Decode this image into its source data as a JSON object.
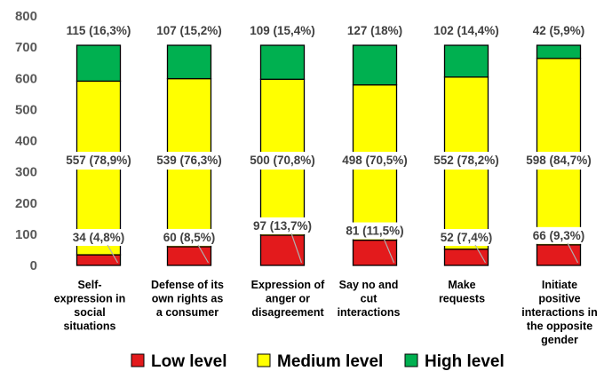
{
  "chart_data": {
    "type": "bar",
    "stacked": true,
    "categories": [
      [
        "Self-",
        "expression in",
        "social",
        "situations"
      ],
      [
        "Defense of its",
        "own rights as",
        "a consumer"
      ],
      [
        "Expression of",
        "anger or",
        "disagreement"
      ],
      [
        "Say no and",
        "cut",
        "interactions"
      ],
      [
        "Make",
        "requests"
      ],
      [
        "Initiate",
        "positive",
        "interactions in",
        "the opposite",
        "gender"
      ]
    ],
    "series": [
      {
        "name": "Low level",
        "color": "#e31a1c",
        "values": [
          34,
          60,
          97,
          81,
          52,
          66
        ],
        "labels": [
          "34 (4,8%)",
          "60 (8,5%)",
          "97 (13,7%)",
          "81 (11,5%)",
          "52 (7,4%)",
          "66 (9,3%)"
        ]
      },
      {
        "name": "Medium level",
        "color": "#ffff00",
        "values": [
          557,
          539,
          500,
          498,
          552,
          598
        ],
        "labels": [
          "557 (78,9%)",
          "539 (76,3%)",
          "500 (70,8%)",
          "498 (70,5%)",
          "552 (78,2%)",
          "598 (84,7%)"
        ]
      },
      {
        "name": "High level",
        "color": "#00b050",
        "values": [
          115,
          107,
          109,
          127,
          102,
          42
        ],
        "labels": [
          "115 (16,3%)",
          "107 (15,2%)",
          "109 (15,4%)",
          "127 (18%)",
          "102 (14,4%)",
          "42 (5,9%)"
        ]
      }
    ],
    "yticks": [
      "0",
      "100",
      "200",
      "300",
      "400",
      "500",
      "600",
      "700",
      "800"
    ],
    "ylim": [
      0,
      800
    ],
    "grid": false,
    "legend_position": "bottom",
    "title": "",
    "xlabel": "",
    "ylabel": ""
  }
}
